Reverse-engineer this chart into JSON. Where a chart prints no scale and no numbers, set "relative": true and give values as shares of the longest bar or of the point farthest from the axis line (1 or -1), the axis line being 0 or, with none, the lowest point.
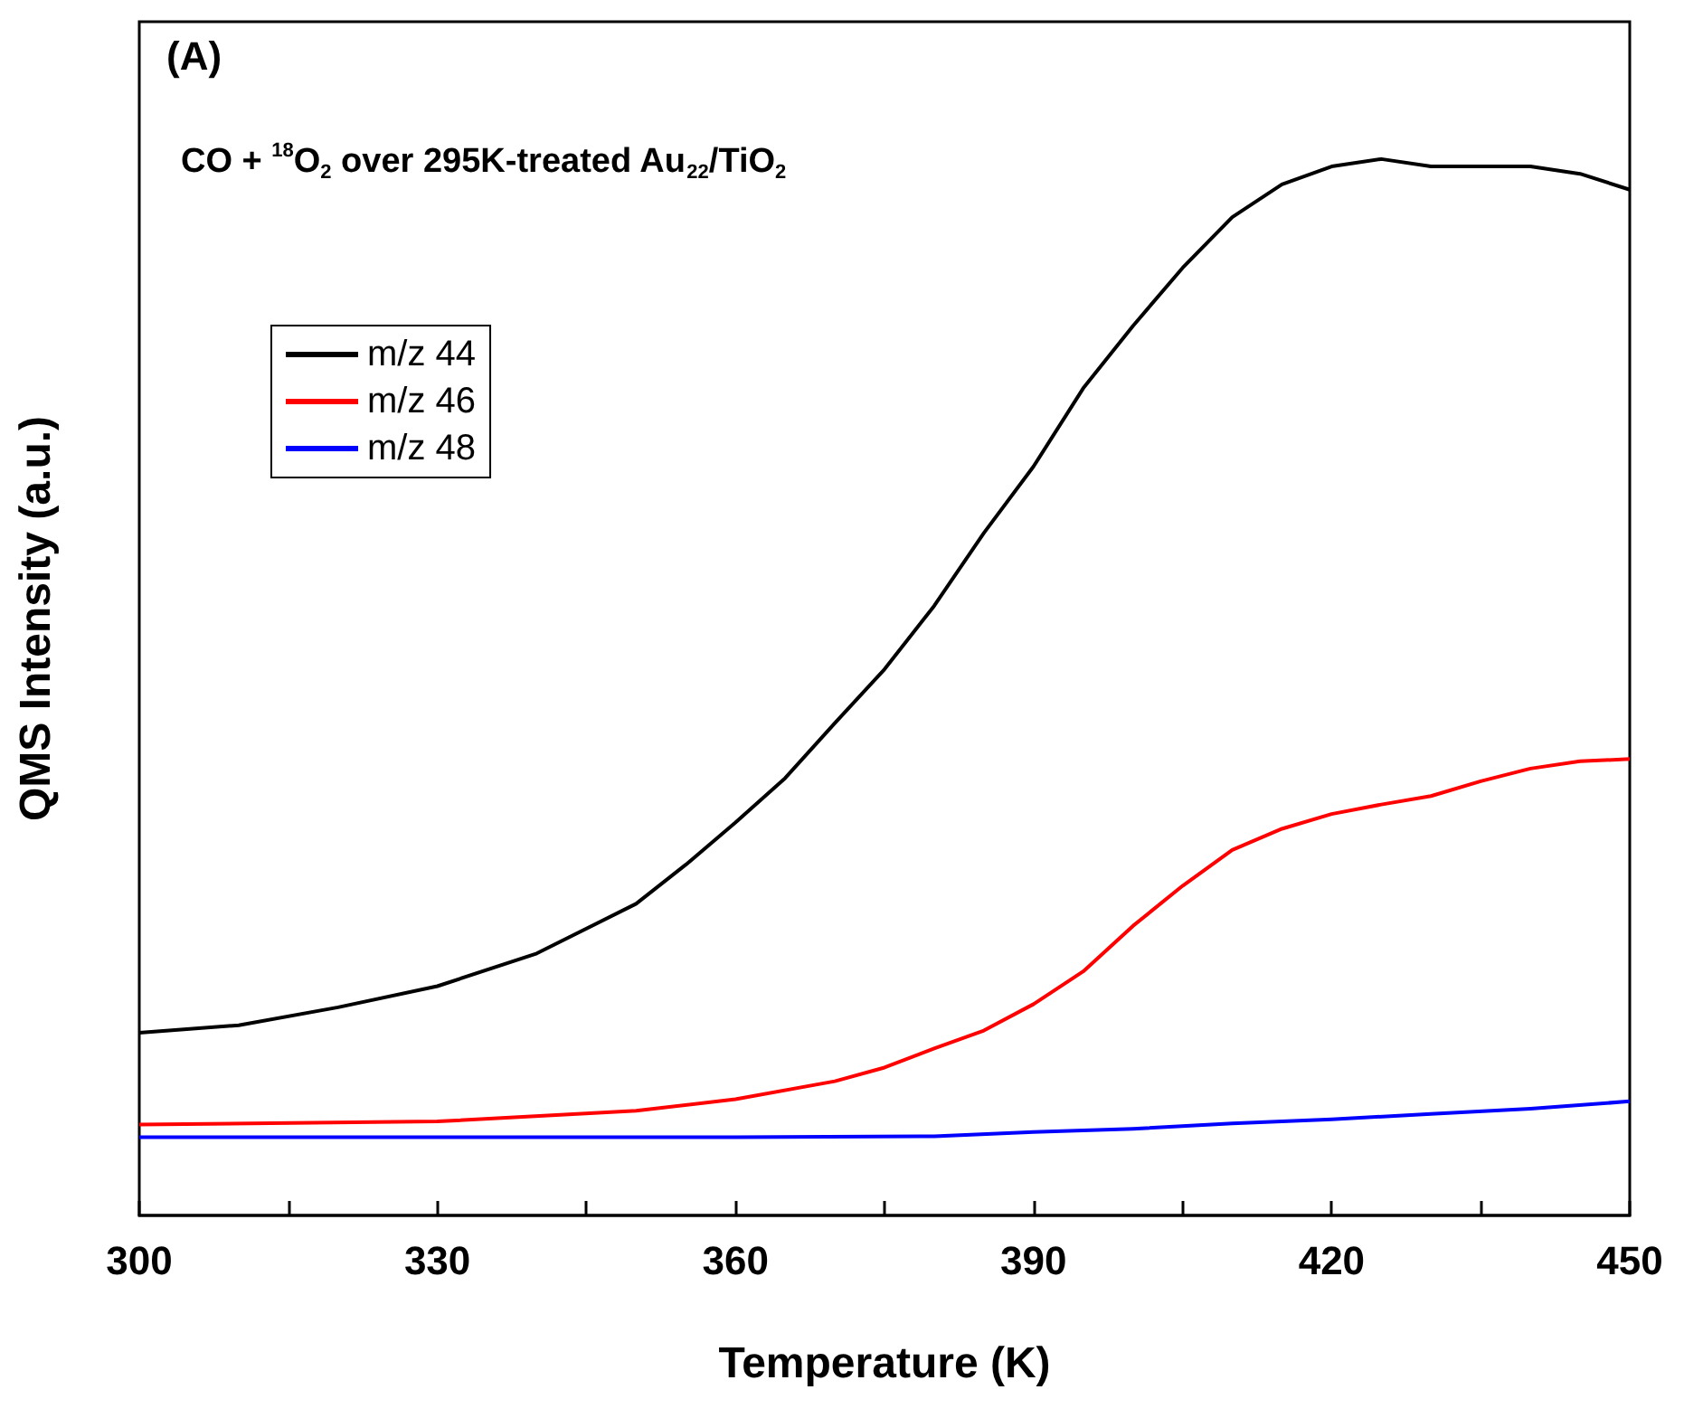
{
  "chart_data": {
    "type": "line",
    "relative": true,
    "xlabel": "Temperature (K)",
    "ylabel": "QMS Intensity (a.u.)",
    "annotations": [
      "(A)",
      "CO + $^{18}$O$_{2}$ over 295K-treated Au$_{22}$/TiO$_{2}$"
    ],
    "xlim": [
      300,
      450
    ],
    "xticks": [
      300,
      {
        "value": 315,
        "label": null
      },
      330,
      {
        "value": 345,
        "label": null
      },
      360,
      {
        "value": 375,
        "label": null
      },
      390,
      {
        "value": 405,
        "label": null
      },
      420,
      {
        "value": 435,
        "label": null
      },
      450
    ],
    "x": [
      300,
      310,
      320,
      330,
      340,
      350,
      355,
      360,
      365,
      370,
      375,
      380,
      385,
      390,
      395,
      400,
      405,
      410,
      415,
      420,
      425,
      430,
      435,
      440,
      445,
      450
    ],
    "series": [
      {
        "name": "m/z 44",
        "color": "#000000",
        "values": [
          0.173,
          0.18,
          0.197,
          0.217,
          0.248,
          0.295,
          0.332,
          0.372,
          0.414,
          0.466,
          0.517,
          0.577,
          0.646,
          0.709,
          0.783,
          0.842,
          0.897,
          0.945,
          0.976,
          0.993,
          1,
          0.993,
          0.993,
          0.993,
          0.986,
          0.971
        ]
      },
      {
        "name": "m/z 46",
        "color": "#ff0000",
        "x": [
          300,
          330,
          350,
          360,
          370,
          375,
          380,
          385,
          390,
          395,
          400,
          405,
          410,
          415,
          420,
          425,
          430,
          435,
          440,
          445,
          450
        ],
        "values": [
          0.086,
          0.089,
          0.099,
          0.11,
          0.127,
          0.14,
          0.158,
          0.175,
          0.2,
          0.231,
          0.274,
          0.312,
          0.346,
          0.366,
          0.38,
          0.389,
          0.397,
          0.411,
          0.423,
          0.43,
          0.432
        ]
      },
      {
        "name": "m/z 48",
        "color": "#0000ff",
        "x": [
          300,
          360,
          380,
          390,
          400,
          410,
          420,
          430,
          440,
          450
        ],
        "values": [
          0.074,
          0.074,
          0.075,
          0.079,
          0.082,
          0.087,
          0.091,
          0.096,
          0.101,
          0.108
        ]
      }
    ],
    "legend": "top left",
    "grid": false,
    "marker": "none",
    "line_style": "solid"
  }
}
